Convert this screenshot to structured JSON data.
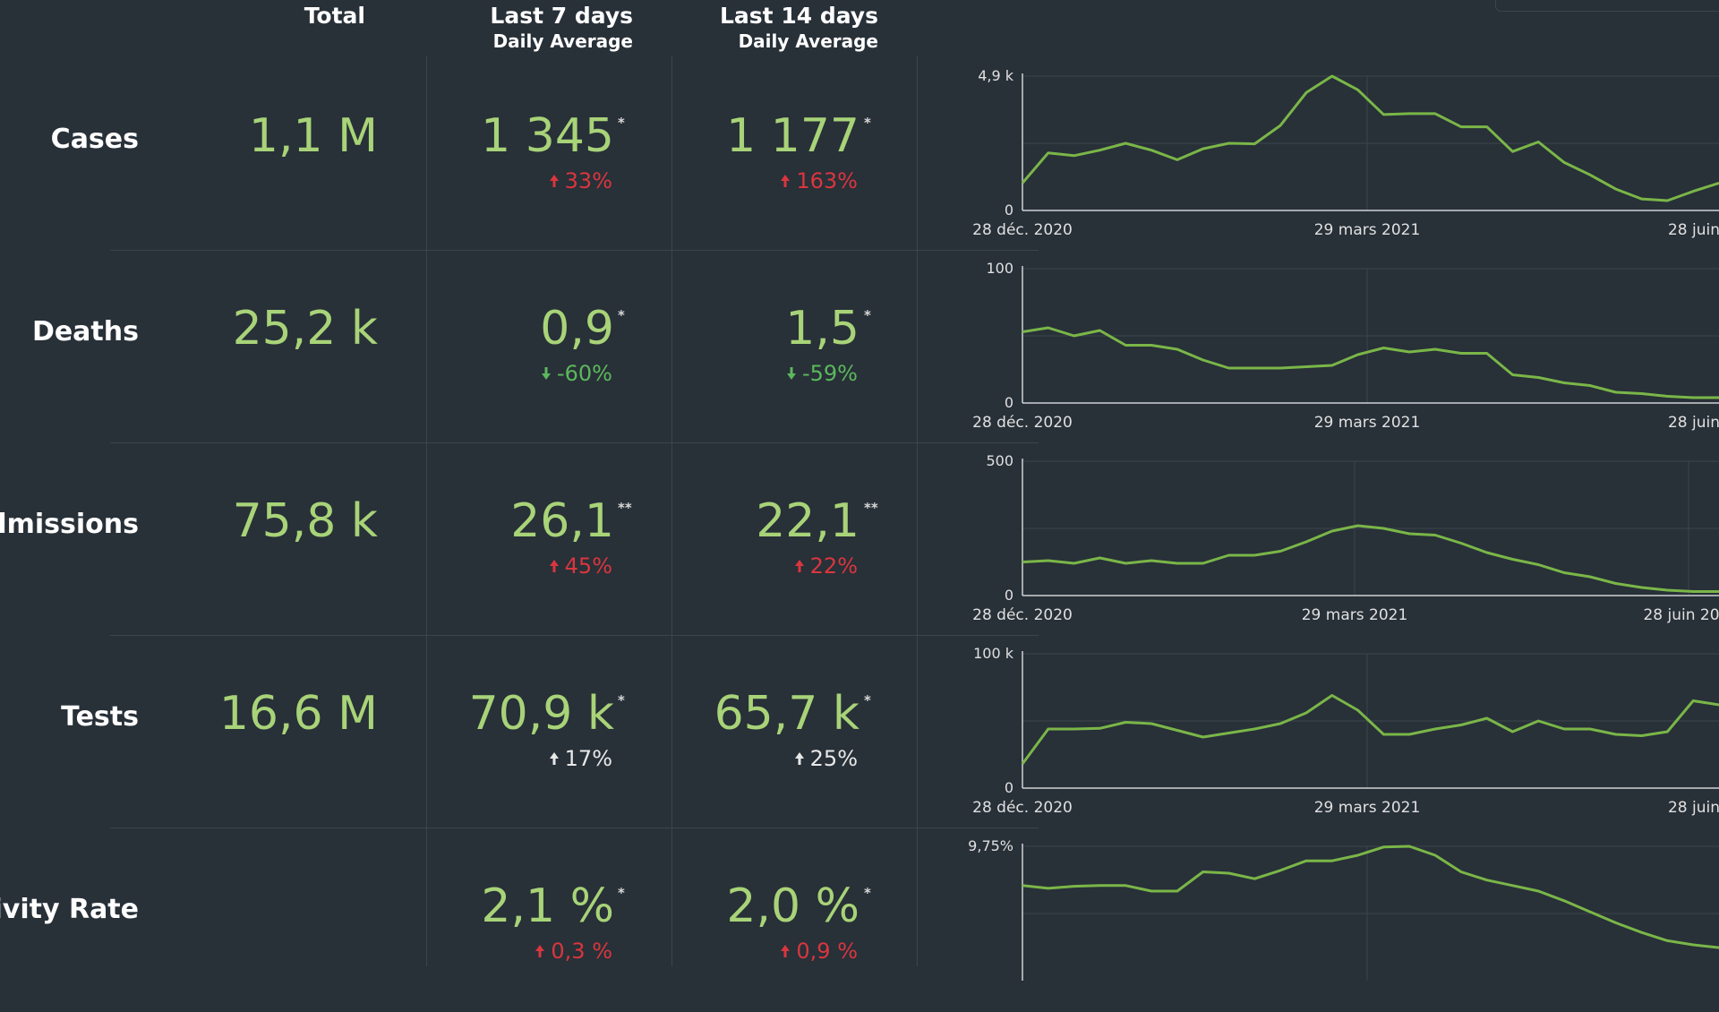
{
  "headers": {
    "total": "Total",
    "last7": "Last 7 days",
    "last7_sub": "Daily Average",
    "last14": "Last 14 days",
    "last14_sub": "Daily Average"
  },
  "rows": [
    {
      "label": "Cases",
      "total": "1,1 M",
      "avg7": "1 345",
      "avg7_mark": "*",
      "avg7_change": "33%",
      "avg7_dir": "up",
      "avg7_color": "#d9363e",
      "avg14": "1 177",
      "avg14_mark": "*",
      "avg14_change": "163%",
      "avg14_dir": "up",
      "avg14_color": "#d9363e"
    },
    {
      "label": "Deaths",
      "total": "25,2 k",
      "avg7": "0,9",
      "avg7_mark": "*",
      "avg7_change": "-60%",
      "avg7_dir": "down",
      "avg7_color": "#5cb85c",
      "avg14": "1,5",
      "avg14_mark": "*",
      "avg14_change": "-59%",
      "avg14_dir": "down",
      "avg14_color": "#5cb85c"
    },
    {
      "label": "Admissions",
      "total": "75,8 k",
      "avg7": "26,1",
      "avg7_mark": "**",
      "avg7_change": "45%",
      "avg7_dir": "up",
      "avg7_color": "#d9363e",
      "avg14": "22,1",
      "avg14_mark": "**",
      "avg14_change": "22%",
      "avg14_dir": "up",
      "avg14_color": "#d9363e"
    },
    {
      "label": "Tests",
      "total": "16,6 M",
      "avg7": "70,9 k",
      "avg7_mark": "*",
      "avg7_change": "17%",
      "avg7_dir": "up",
      "avg7_color": "#e8e8e8",
      "avg14": "65,7 k",
      "avg14_mark": "*",
      "avg14_change": "25%",
      "avg14_dir": "up",
      "avg14_color": "#e8e8e8"
    },
    {
      "label": "itivity Rate",
      "total": "",
      "avg7": "2,1 %",
      "avg7_mark": "*",
      "avg7_change": "0,3 %",
      "avg7_dir": "up",
      "avg7_color": "#d9363e",
      "avg14": "2,0 %",
      "avg14_mark": "*",
      "avg14_change": "0,9 %",
      "avg14_dir": "up",
      "avg14_color": "#d9363e"
    }
  ],
  "colors": {
    "background": "#283038",
    "value": "#a8d378",
    "line": "#7ab648",
    "grid": "#3c444c",
    "up_bad": "#d9363e",
    "down_good": "#5cb85c"
  },
  "chart_data": [
    {
      "type": "line",
      "title": "Cases",
      "ylim": [
        0,
        4900
      ],
      "ytick_labels": [
        "0",
        "4,9 k"
      ],
      "xtick_labels": [
        "28 déc. 2020",
        "29 mars 2021",
        "28 juin"
      ],
      "grid": true,
      "x": [
        "2020-12-28",
        "2021-01-04",
        "2021-01-11",
        "2021-01-18",
        "2021-01-25",
        "2021-02-01",
        "2021-02-08",
        "2021-02-15",
        "2021-02-22",
        "2021-03-01",
        "2021-03-08",
        "2021-03-15",
        "2021-03-22",
        "2021-03-29",
        "2021-04-05",
        "2021-04-12",
        "2021-04-19",
        "2021-04-26",
        "2021-05-03",
        "2021-05-10",
        "2021-05-17",
        "2021-05-24",
        "2021-05-31",
        "2021-06-07",
        "2021-06-14",
        "2021-06-21",
        "2021-06-28",
        "2021-07-05"
      ],
      "values": [
        1000,
        2100,
        2000,
        2200,
        2450,
        2200,
        1850,
        2250,
        2450,
        2430,
        3100,
        4300,
        4900,
        4400,
        3500,
        3530,
        3530,
        3050,
        3050,
        2150,
        2500,
        1750,
        1300,
        780,
        420,
        360,
        700,
        1000
      ]
    },
    {
      "type": "line",
      "title": "Deaths",
      "ylim": [
        0,
        100
      ],
      "ytick_labels": [
        "0",
        "100"
      ],
      "xtick_labels": [
        "28 déc. 2020",
        "29 mars 2021",
        "28 juin"
      ],
      "grid": true,
      "x": [
        "2020-12-28",
        "2021-01-04",
        "2021-01-11",
        "2021-01-18",
        "2021-01-25",
        "2021-02-01",
        "2021-02-08",
        "2021-02-15",
        "2021-02-22",
        "2021-03-01",
        "2021-03-08",
        "2021-03-15",
        "2021-03-22",
        "2021-03-29",
        "2021-04-05",
        "2021-04-12",
        "2021-04-19",
        "2021-04-26",
        "2021-05-03",
        "2021-05-10",
        "2021-05-17",
        "2021-05-24",
        "2021-05-31",
        "2021-06-07",
        "2021-06-14",
        "2021-06-21",
        "2021-06-28",
        "2021-07-05"
      ],
      "values": [
        53,
        56,
        50,
        54,
        43,
        43,
        40,
        32,
        26,
        26,
        26,
        27,
        28,
        36,
        41,
        38,
        40,
        37,
        37,
        21,
        19,
        15,
        13,
        8,
        7,
        5,
        4,
        4
      ]
    },
    {
      "type": "line",
      "title": "Admissions",
      "ylim": [
        0,
        500
      ],
      "ytick_labels": [
        "0",
        "500"
      ],
      "xtick_labels": [
        "28 déc. 2020",
        "29 mars 2021",
        "28 juin 20"
      ],
      "grid": true,
      "x": [
        "2020-12-28",
        "2021-01-04",
        "2021-01-11",
        "2021-01-18",
        "2021-01-25",
        "2021-02-01",
        "2021-02-08",
        "2021-02-15",
        "2021-02-22",
        "2021-03-01",
        "2021-03-08",
        "2021-03-15",
        "2021-03-22",
        "2021-03-29",
        "2021-04-05",
        "2021-04-12",
        "2021-04-19",
        "2021-04-26",
        "2021-05-03",
        "2021-05-10",
        "2021-05-17",
        "2021-05-24",
        "2021-05-31",
        "2021-06-07",
        "2021-06-14",
        "2021-06-21",
        "2021-06-28",
        "2021-07-05"
      ],
      "values": [
        125,
        130,
        120,
        140,
        120,
        130,
        120,
        120,
        150,
        150,
        165,
        200,
        240,
        260,
        250,
        230,
        225,
        195,
        160,
        135,
        115,
        85,
        70,
        45,
        30,
        20,
        15,
        15
      ]
    },
    {
      "type": "line",
      "title": "Tests",
      "ylim": [
        0,
        100000
      ],
      "ytick_labels": [
        "0",
        "100 k"
      ],
      "xtick_labels": [
        "28 déc. 2020",
        "29 mars 2021",
        "28 juin"
      ],
      "grid": true,
      "x": [
        "2020-12-28",
        "2021-01-04",
        "2021-01-11",
        "2021-01-18",
        "2021-01-25",
        "2021-02-01",
        "2021-02-08",
        "2021-02-15",
        "2021-02-22",
        "2021-03-01",
        "2021-03-08",
        "2021-03-15",
        "2021-03-22",
        "2021-03-29",
        "2021-04-05",
        "2021-04-12",
        "2021-04-19",
        "2021-04-26",
        "2021-05-03",
        "2021-05-10",
        "2021-05-17",
        "2021-05-24",
        "2021-05-31",
        "2021-06-07",
        "2021-06-14",
        "2021-06-21",
        "2021-06-28",
        "2021-07-05"
      ],
      "values": [
        18000,
        44000,
        44000,
        44500,
        49000,
        48000,
        43000,
        38000,
        41000,
        44000,
        48000,
        56000,
        69000,
        58000,
        40000,
        40000,
        44000,
        47000,
        52000,
        42000,
        50000,
        44000,
        44000,
        40000,
        39000,
        42000,
        65000,
        62000
      ]
    },
    {
      "type": "line",
      "title": "itivity Rate",
      "ylim": [
        0,
        9.75
      ],
      "ytick_labels": [
        "9,75%"
      ],
      "xtick_labels": [],
      "grid": true,
      "x": [
        "2020-12-28",
        "2021-01-04",
        "2021-01-11",
        "2021-01-18",
        "2021-01-25",
        "2021-02-01",
        "2021-02-08",
        "2021-02-15",
        "2021-02-22",
        "2021-03-01",
        "2021-03-08",
        "2021-03-15",
        "2021-03-22",
        "2021-03-29",
        "2021-04-05",
        "2021-04-12",
        "2021-04-19",
        "2021-04-26",
        "2021-05-03",
        "2021-05-10",
        "2021-05-17",
        "2021-05-24",
        "2021-05-31",
        "2021-06-07",
        "2021-06-14",
        "2021-06-21",
        "2021-06-28",
        "2021-07-05"
      ],
      "values": [
        6.9,
        6.7,
        6.85,
        6.9,
        6.9,
        6.5,
        6.5,
        7.9,
        7.8,
        7.4,
        8.0,
        8.7,
        8.7,
        9.1,
        9.7,
        9.75,
        9.1,
        7.9,
        7.3,
        6.9,
        6.5,
        5.8,
        5.0,
        4.2,
        3.5,
        2.9,
        2.6,
        2.4
      ]
    }
  ]
}
